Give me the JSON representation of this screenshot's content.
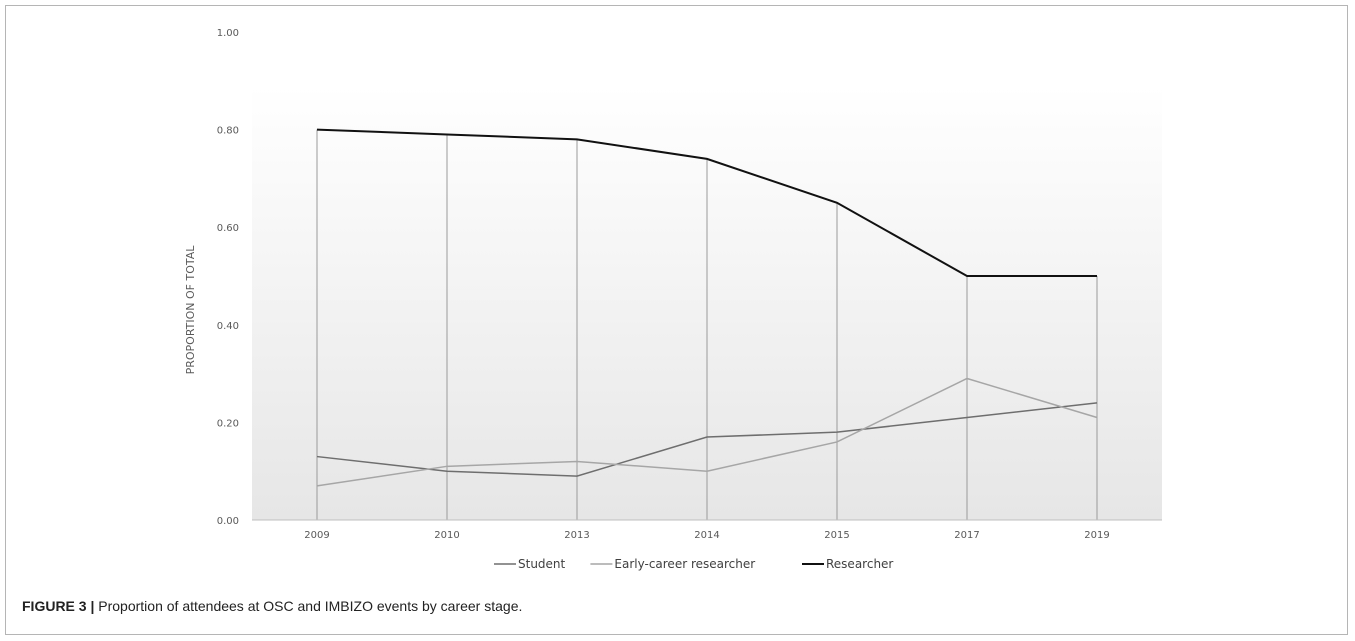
{
  "caption": {
    "figure_label": "FIGURE 3 |",
    "text": "Proportion of attendees at OSC and IMBIZO events by career stage."
  },
  "chart_data": {
    "type": "line",
    "title": "",
    "xlabel": "",
    "ylabel": "PROPORTION OF TOTAL",
    "categories": [
      "2009",
      "2010",
      "2013",
      "2014",
      "2015",
      "2017",
      "2019"
    ],
    "ylim": [
      0,
      1
    ],
    "yticks": [
      "0.00",
      "0.20",
      "0.40",
      "0.60",
      "0.80",
      "1.00"
    ],
    "grid": "vertical drop lines at each category",
    "legend": "bottom",
    "series": [
      {
        "name": "Student",
        "color": "#6e6e6e",
        "values": [
          0.13,
          0.1,
          0.09,
          0.17,
          0.18,
          0.21,
          0.24
        ]
      },
      {
        "name": "Early-career researcher",
        "color": "#a6a6a6",
        "values": [
          0.07,
          0.11,
          0.12,
          0.1,
          0.16,
          0.29,
          0.21
        ]
      },
      {
        "name": "Researcher",
        "color": "#111111",
        "values": [
          0.8,
          0.79,
          0.78,
          0.74,
          0.65,
          0.5,
          0.5
        ]
      }
    ]
  }
}
